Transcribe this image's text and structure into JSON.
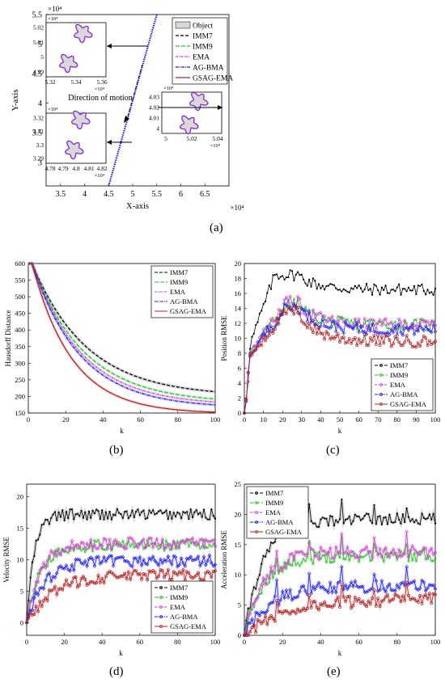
{
  "captions": {
    "a": "(a)",
    "b": "(b)",
    "c": "(c)",
    "d": "(d)",
    "e": "(e)"
  },
  "colors": {
    "IMM7": "#000000",
    "IMM9": "#22c222",
    "EMA": "#cc44cc",
    "AG-BMA": "#1a1aee",
    "GSAG-EMA": "#b22222",
    "Object": "#d8d8d8"
  },
  "chart_data": [
    {
      "id": "a",
      "type": "scatter",
      "xlabel": "X-axis",
      "ylabel": "Y-axis",
      "xlim": [
        3.2,
        7.0
      ],
      "ylim": [
        2.6,
        5.5
      ],
      "xticks": [
        "3.5",
        "4",
        "4.5",
        "5",
        "5.5",
        "6",
        "6.5"
      ],
      "yticks": [
        "3",
        "3.5",
        "4",
        "4.5",
        "5",
        "5.5"
      ],
      "x_exponent": "×10⁴",
      "y_exponent": "×10⁴",
      "legend": [
        "Object",
        "IMM7",
        "IMM9",
        "EMA",
        "AG-BMA",
        "GSAG-EMA"
      ],
      "legend_position": "top-right",
      "trajectory": [
        [
          4.5,
          2.6
        ],
        [
          5.5,
          5.5
        ]
      ],
      "annotation": "Direction of motion",
      "insets": [
        {
          "xticks": [
            "5.32",
            "5.34",
            "5.36"
          ],
          "yticks": [
            "4.99",
            "5",
            "5.01",
            "5.02"
          ],
          "xexp": "×10⁴",
          "yexp": "×10⁴"
        },
        {
          "xticks": [
            "5",
            "5.02",
            "5.04"
          ],
          "yticks": [
            "4",
            "4.01",
            "4.02",
            "4.03"
          ],
          "xexp": "×10⁴",
          "yexp": "×10⁴"
        },
        {
          "xticks": [
            "4.78",
            "4.79",
            "4.8",
            "4.81",
            "4.82"
          ],
          "yticks": [
            "3.29",
            "3.3",
            "3.31",
            "3.32"
          ],
          "xexp": "×10⁴",
          "yexp": "×10⁴"
        }
      ]
    },
    {
      "id": "b",
      "type": "line",
      "xlabel": "k",
      "ylabel": "Hausdorff Distance",
      "xlim": [
        0,
        100
      ],
      "ylim": [
        150,
        600
      ],
      "xticks": [
        "0",
        "20",
        "40",
        "60",
        "80",
        "100"
      ],
      "yticks": [
        "150",
        "200",
        "250",
        "300",
        "350",
        "400",
        "450",
        "500",
        "550",
        "600"
      ],
      "legend_position": "top-right",
      "series": [
        {
          "name": "IMM7",
          "end": 225
        },
        {
          "name": "IMM9",
          "end": 205
        },
        {
          "name": "EMA",
          "end": 198
        },
        {
          "name": "AG-BMA",
          "end": 190
        },
        {
          "name": "GSAG-EMA",
          "end": 173
        }
      ]
    },
    {
      "id": "c",
      "type": "line",
      "xlabel": "k",
      "ylabel": "Position RMSE",
      "xlim": [
        0,
        100
      ],
      "ylim": [
        0,
        20
      ],
      "xticks": [
        "0",
        "10",
        "20",
        "30",
        "40",
        "50",
        "60",
        "70",
        "80",
        "90",
        "100"
      ],
      "yticks": [
        "0",
        "2",
        "4",
        "6",
        "8",
        "10",
        "12",
        "14",
        "16",
        "18",
        "20"
      ],
      "legend_position": "bottom-right",
      "series": [
        {
          "name": "IMM7",
          "plateau": 16.5,
          "peak": 18.5
        },
        {
          "name": "IMM9",
          "plateau": 11.8,
          "peak": 14.5
        },
        {
          "name": "EMA",
          "plateau": 11.8,
          "peak": 14.8
        },
        {
          "name": "AG-BMA",
          "plateau": 11.2,
          "peak": 14.2
        },
        {
          "name": "GSAG-EMA",
          "plateau": 9.6,
          "peak": 13.5
        }
      ]
    },
    {
      "id": "d",
      "type": "line",
      "xlabel": "k",
      "ylabel": "Velocity RMSE",
      "xlim": [
        0,
        100
      ],
      "ylim": [
        -2,
        22
      ],
      "xticks": [
        "0",
        "20",
        "40",
        "60",
        "80",
        "100"
      ],
      "yticks": [
        "0",
        "5",
        "10",
        "15",
        "20"
      ],
      "legend_position": "bottom-right",
      "series": [
        {
          "name": "IMM7",
          "plateau": 17.2
        },
        {
          "name": "IMM9",
          "plateau": 12.3
        },
        {
          "name": "EMA",
          "plateau": 12.6
        },
        {
          "name": "AG-BMA",
          "plateau": 9.8
        },
        {
          "name": "GSAG-EMA",
          "plateau": 7.6
        }
      ]
    },
    {
      "id": "e",
      "type": "line",
      "xlabel": "k",
      "ylabel": "Acceleration RMSE",
      "xlim": [
        0,
        100
      ],
      "ylim": [
        0,
        25
      ],
      "xticks": [
        "0",
        "20",
        "40",
        "60",
        "80",
        "100"
      ],
      "yticks": [
        "0",
        "5",
        "10",
        "15",
        "20",
        "25"
      ],
      "legend_position": "top-left",
      "series": [
        {
          "name": "IMM7",
          "plateau": 19.2
        },
        {
          "name": "IMM9",
          "plateau": 13.2
        },
        {
          "name": "EMA",
          "plateau": 13.8
        },
        {
          "name": "AG-BMA",
          "plateau": 8.2
        },
        {
          "name": "GSAG-EMA",
          "plateau": 6.0
        }
      ]
    }
  ]
}
